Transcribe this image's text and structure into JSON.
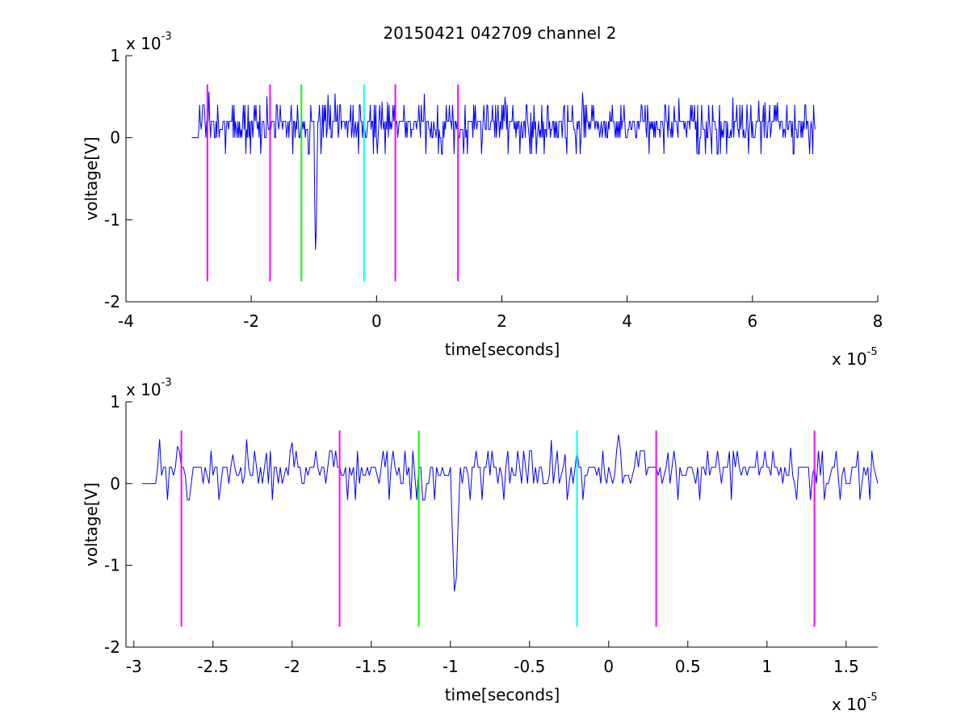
{
  "figure": {
    "title": "20150421 042709 channel 2"
  },
  "colors": {
    "trace": "#0000ff",
    "marker_magenta": "#ff00ff",
    "marker_green": "#00ff00",
    "marker_cyan": "#00ffff",
    "axis": "#000000",
    "background": "#ffffff"
  },
  "chart_data": [
    {
      "type": "line",
      "xlabel": "time[seconds]",
      "ylabel": "voltage[V]",
      "x_exponent_base": "x 10",
      "x_exponent_power": "-5",
      "y_exponent_base": "x 10",
      "y_exponent_power": "-3",
      "x_unit_scale": 1e-05,
      "y_unit_scale": 0.001,
      "xlim": [
        -4,
        8
      ],
      "ylim": [
        -2,
        1
      ],
      "xticks": [
        -4,
        -2,
        0,
        2,
        4,
        6,
        8
      ],
      "xtick_labels": [
        "-4",
        "-2",
        "0",
        "2",
        "4",
        "6",
        "8"
      ],
      "yticks": [
        -2,
        -1,
        0,
        1
      ],
      "ytick_labels": [
        "-2",
        "-1",
        "0",
        "1"
      ],
      "grid": false,
      "trace": {
        "x_start": -2.95,
        "x_end": 7.0,
        "baseline_levels": [
          0.0,
          0.2
        ],
        "noise_peaks": [
          0.4,
          0.6
        ],
        "noise_dips": [
          -0.2
        ],
        "spike": {
          "x": -0.97,
          "min": -1.6
        }
      },
      "markers": [
        {
          "x": -2.7,
          "color": "magenta",
          "y_top": 0.65,
          "y_bottom": -1.75
        },
        {
          "x": -1.7,
          "color": "magenta",
          "y_top": 0.65,
          "y_bottom": -1.75
        },
        {
          "x": -1.2,
          "color": "green",
          "y_top": 0.65,
          "y_bottom": -1.75
        },
        {
          "x": -0.2,
          "color": "cyan",
          "y_top": 0.65,
          "y_bottom": -1.75
        },
        {
          "x": 0.3,
          "color": "magenta",
          "y_top": 0.65,
          "y_bottom": -1.75
        },
        {
          "x": 1.3,
          "color": "magenta",
          "y_top": 0.65,
          "y_bottom": -1.75
        }
      ]
    },
    {
      "type": "line",
      "xlabel": "time[seconds]",
      "ylabel": "voltage[V]",
      "x_exponent_base": "x 10",
      "x_exponent_power": "-5",
      "y_exponent_base": "x 10",
      "y_exponent_power": "-3",
      "x_unit_scale": 1e-05,
      "y_unit_scale": 0.001,
      "xlim": [
        -3.05,
        1.7
      ],
      "ylim": [
        -2,
        1
      ],
      "xticks": [
        -3,
        -2.5,
        -2,
        -1.5,
        -1,
        -0.5,
        0,
        0.5,
        1,
        1.5
      ],
      "xtick_labels": [
        "-3",
        "-2.5",
        "-2",
        "-1.5",
        "-1",
        "-0.5",
        "0",
        "0.5",
        "1",
        "1.5"
      ],
      "yticks": [
        -2,
        -1,
        0,
        1
      ],
      "ytick_labels": [
        "-2",
        "-1",
        "0",
        "1"
      ],
      "grid": false,
      "trace": {
        "x_start": -2.95,
        "x_end": 1.7,
        "baseline_levels": [
          0.0,
          0.2
        ],
        "noise_peaks": [
          0.4,
          0.6
        ],
        "noise_dips": [
          -0.2
        ],
        "spike": {
          "x": -0.97,
          "min": -1.6
        }
      },
      "markers": [
        {
          "x": -2.7,
          "color": "magenta",
          "y_top": 0.65,
          "y_bottom": -1.75
        },
        {
          "x": -1.7,
          "color": "magenta",
          "y_top": 0.65,
          "y_bottom": -1.75
        },
        {
          "x": -1.2,
          "color": "green",
          "y_top": 0.65,
          "y_bottom": -1.75
        },
        {
          "x": -0.2,
          "color": "cyan",
          "y_top": 0.65,
          "y_bottom": -1.75
        },
        {
          "x": 0.3,
          "color": "magenta",
          "y_top": 0.65,
          "y_bottom": -1.75
        },
        {
          "x": 1.3,
          "color": "magenta",
          "y_top": 0.65,
          "y_bottom": -1.75
        }
      ]
    }
  ]
}
